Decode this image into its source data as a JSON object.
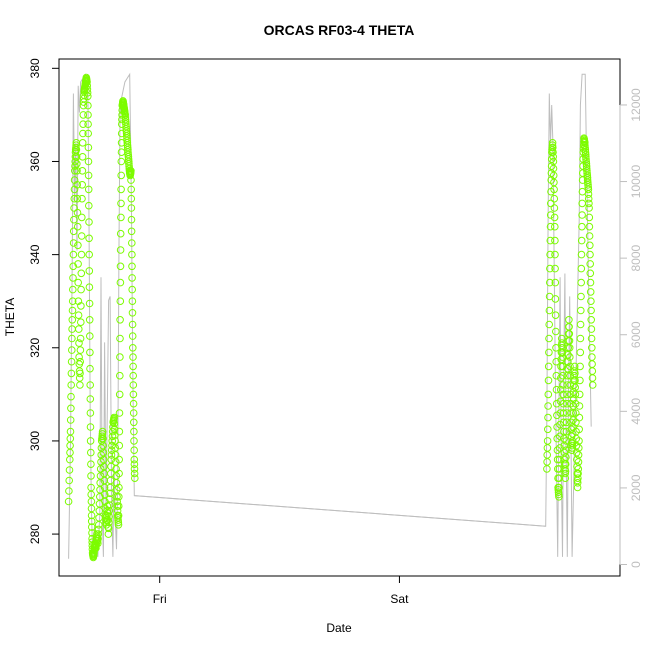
{
  "chart_data": {
    "type": "scatter",
    "title": "ORCAS RF03-4 THETA",
    "xlabel": "Date",
    "ylabel": "THETA",
    "x_ticks": [
      "Fri",
      "Sat"
    ],
    "x_range_days": [
      -0.42,
      1.92
    ],
    "y_left": {
      "range": [
        271,
        382
      ],
      "ticks": [
        280,
        300,
        320,
        340,
        360,
        380
      ]
    },
    "y_right": {
      "range": [
        -300,
        13200
      ],
      "ticks": [
        0,
        2000,
        4000,
        6000,
        8000,
        10000,
        12000
      ]
    },
    "grid": false,
    "legend": "none",
    "colors": {
      "points": "#7cfc00",
      "altitude_line": "#bebebe",
      "axes": "#000000",
      "right_axis": "#bebebe"
    },
    "series": [
      {
        "marker": "open-circle",
        "axis": "left",
        "points": [
          [
            -0.38,
            287
          ],
          [
            -0.375,
            296
          ],
          [
            -0.372,
            302
          ],
          [
            -0.369,
            312
          ],
          [
            -0.366,
            322
          ],
          [
            -0.363,
            330
          ],
          [
            -0.36,
            340
          ],
          [
            -0.357,
            350
          ],
          [
            -0.354,
            358
          ],
          [
            -0.351,
            362
          ],
          [
            -0.348,
            364
          ],
          [
            -0.345,
            358
          ],
          [
            -0.342,
            346
          ],
          [
            -0.339,
            330
          ],
          [
            -0.336,
            318
          ],
          [
            -0.333,
            312
          ],
          [
            -0.33,
            322
          ],
          [
            -0.327,
            336
          ],
          [
            -0.324,
            352
          ],
          [
            -0.321,
            364
          ],
          [
            -0.318,
            372
          ],
          [
            -0.315,
            375
          ],
          [
            -0.312,
            376
          ],
          [
            -0.309,
            377
          ],
          [
            -0.306,
            378
          ],
          [
            -0.303,
            377
          ],
          [
            -0.3,
            374
          ],
          [
            -0.298,
            366
          ],
          [
            -0.296,
            354
          ],
          [
            -0.294,
            340
          ],
          [
            -0.292,
            326
          ],
          [
            -0.29,
            312
          ],
          [
            -0.288,
            300
          ],
          [
            -0.286,
            290
          ],
          [
            -0.284,
            284
          ],
          [
            -0.282,
            279
          ],
          [
            -0.28,
            276
          ],
          [
            -0.277,
            275
          ],
          [
            -0.274,
            276
          ],
          [
            -0.27,
            278
          ],
          [
            -0.266,
            277
          ],
          [
            -0.262,
            280
          ],
          [
            -0.258,
            278
          ],
          [
            -0.254,
            282
          ],
          [
            -0.25,
            288
          ],
          [
            -0.246,
            294
          ],
          [
            -0.242,
            300
          ],
          [
            -0.238,
            302
          ],
          [
            -0.234,
            296
          ],
          [
            -0.23,
            290
          ],
          [
            -0.226,
            284
          ],
          [
            -0.222,
            282
          ],
          [
            -0.218,
            286
          ],
          [
            -0.214,
            280
          ],
          [
            -0.21,
            285
          ],
          [
            -0.206,
            290
          ],
          [
            -0.202,
            296
          ],
          [
            -0.198,
            300
          ],
          [
            -0.194,
            304
          ],
          [
            -0.19,
            305
          ],
          [
            -0.186,
            300
          ],
          [
            -0.182,
            294
          ],
          [
            -0.178,
            288
          ],
          [
            -0.175,
            284
          ],
          [
            -0.172,
            282
          ],
          [
            -0.17,
            290
          ],
          [
            -0.168,
            302
          ],
          [
            -0.166,
            318
          ],
          [
            -0.164,
            334
          ],
          [
            -0.162,
            348
          ],
          [
            -0.16,
            360
          ],
          [
            -0.158,
            368
          ],
          [
            -0.156,
            372
          ],
          [
            -0.153,
            373
          ],
          [
            -0.15,
            372
          ],
          [
            -0.147,
            371
          ],
          [
            -0.144,
            370
          ],
          [
            -0.141,
            368
          ],
          [
            -0.138,
            366
          ],
          [
            -0.135,
            364
          ],
          [
            -0.132,
            362
          ],
          [
            -0.129,
            360
          ],
          [
            -0.126,
            358
          ],
          [
            -0.123,
            357
          ],
          [
            -0.12,
            358
          ],
          [
            -0.118,
            350
          ],
          [
            -0.116,
            340
          ],
          [
            -0.114,
            330
          ],
          [
            -0.112,
            320
          ],
          [
            -0.11,
            312
          ],
          [
            -0.108,
            304
          ],
          [
            -0.106,
            296
          ],
          [
            -0.104,
            292
          ],
          [
            1.615,
            294
          ],
          [
            1.618,
            300
          ],
          [
            1.621,
            310
          ],
          [
            1.624,
            322
          ],
          [
            1.627,
            334
          ],
          [
            1.63,
            346
          ],
          [
            1.633,
            356
          ],
          [
            1.636,
            362
          ],
          [
            1.639,
            364
          ],
          [
            1.642,
            360
          ],
          [
            1.645,
            354
          ],
          [
            1.648,
            346
          ],
          [
            1.65,
            334
          ],
          [
            1.653,
            320
          ],
          [
            1.656,
            308
          ],
          [
            1.659,
            298
          ],
          [
            1.662,
            290
          ],
          [
            1.665,
            288
          ],
          [
            1.668,
            296
          ],
          [
            1.671,
            306
          ],
          [
            1.674,
            316
          ],
          [
            1.677,
            322
          ],
          [
            1.68,
            318
          ],
          [
            1.683,
            310
          ],
          [
            1.686,
            302
          ],
          [
            1.689,
            296
          ],
          [
            1.692,
            292
          ],
          [
            1.695,
            298
          ],
          [
            1.698,
            306
          ],
          [
            1.701,
            314
          ],
          [
            1.704,
            320
          ],
          [
            1.707,
            326
          ],
          [
            1.71,
            320
          ],
          [
            1.713,
            312
          ],
          [
            1.716,
            304
          ],
          [
            1.719,
            298
          ],
          [
            1.722,
            300
          ],
          [
            1.725,
            306
          ],
          [
            1.728,
            312
          ],
          [
            1.731,
            316
          ],
          [
            1.734,
            310
          ],
          [
            1.737,
            302
          ],
          [
            1.74,
            296
          ],
          [
            1.743,
            290
          ],
          [
            1.746,
            294
          ],
          [
            1.749,
            300
          ],
          [
            1.752,
            310
          ],
          [
            1.755,
            322
          ],
          [
            1.758,
            334
          ],
          [
            1.761,
            346
          ],
          [
            1.764,
            356
          ],
          [
            1.767,
            362
          ],
          [
            1.77,
            365
          ],
          [
            1.773,
            364
          ],
          [
            1.776,
            362
          ],
          [
            1.779,
            360
          ],
          [
            1.782,
            358
          ],
          [
            1.785,
            356
          ],
          [
            1.788,
            354
          ],
          [
            1.791,
            350
          ],
          [
            1.794,
            342
          ],
          [
            1.797,
            334
          ],
          [
            1.8,
            326
          ],
          [
            1.803,
            318
          ],
          [
            1.806,
            312
          ]
        ]
      },
      {
        "marker": "line",
        "axis": "right",
        "points": [
          [
            -0.38,
            150
          ],
          [
            -0.372,
            3200
          ],
          [
            -0.365,
            7800
          ],
          [
            -0.36,
            12300
          ],
          [
            -0.355,
            9500
          ],
          [
            -0.35,
            11000
          ],
          [
            -0.345,
            8200
          ],
          [
            -0.34,
            12500
          ],
          [
            -0.335,
            11800
          ],
          [
            -0.33,
            12600
          ],
          [
            -0.32,
            12700
          ],
          [
            -0.31,
            12800
          ],
          [
            -0.3,
            12700
          ],
          [
            -0.295,
            9000
          ],
          [
            -0.29,
            4000
          ],
          [
            -0.285,
            1500
          ],
          [
            -0.28,
            300
          ],
          [
            -0.272,
            1000
          ],
          [
            -0.265,
            500
          ],
          [
            -0.258,
            200
          ],
          [
            -0.25,
            1300
          ],
          [
            -0.245,
            7500
          ],
          [
            -0.24,
            1400
          ],
          [
            -0.235,
            200
          ],
          [
            -0.23,
            5800
          ],
          [
            -0.224,
            1400
          ],
          [
            -0.218,
            4200
          ],
          [
            -0.213,
            6900
          ],
          [
            -0.207,
            7000
          ],
          [
            -0.2,
            1500
          ],
          [
            -0.195,
            200
          ],
          [
            -0.19,
            2500
          ],
          [
            -0.185,
            1200
          ],
          [
            -0.18,
            400
          ],
          [
            -0.175,
            2200
          ],
          [
            -0.17,
            8000
          ],
          [
            -0.165,
            12000
          ],
          [
            -0.155,
            12300
          ],
          [
            -0.145,
            12600
          ],
          [
            -0.135,
            12700
          ],
          [
            -0.125,
            12800
          ],
          [
            -0.118,
            9500
          ],
          [
            -0.112,
            5000
          ],
          [
            -0.106,
            1800
          ],
          [
            1.61,
            1000
          ],
          [
            1.615,
            4000
          ],
          [
            1.62,
            9000
          ],
          [
            1.625,
            12300
          ],
          [
            1.63,
            11000
          ],
          [
            1.635,
            12000
          ],
          [
            1.64,
            11000
          ],
          [
            1.645,
            8000
          ],
          [
            1.65,
            5000
          ],
          [
            1.655,
            2500
          ],
          [
            1.66,
            200
          ],
          [
            1.665,
            4000
          ],
          [
            1.67,
            7500
          ],
          [
            1.675,
            2500
          ],
          [
            1.68,
            200
          ],
          [
            1.685,
            5000
          ],
          [
            1.69,
            7600
          ],
          [
            1.695,
            3000
          ],
          [
            1.7,
            200
          ],
          [
            1.705,
            4500
          ],
          [
            1.71,
            7000
          ],
          [
            1.715,
            3500
          ],
          [
            1.72,
            200
          ],
          [
            1.73,
            3000
          ],
          [
            1.74,
            6000
          ],
          [
            1.75,
            9000
          ],
          [
            1.755,
            12000
          ],
          [
            1.762,
            12800
          ],
          [
            1.775,
            12800
          ],
          [
            1.782,
            10000
          ],
          [
            1.79,
            7000
          ],
          [
            1.8,
            3600
          ]
        ]
      }
    ],
    "ground_line": {
      "marker": "line",
      "axis": "right",
      "points": [
        [
          -0.106,
          1800
        ],
        [
          1.61,
          1000
        ]
      ]
    }
  }
}
